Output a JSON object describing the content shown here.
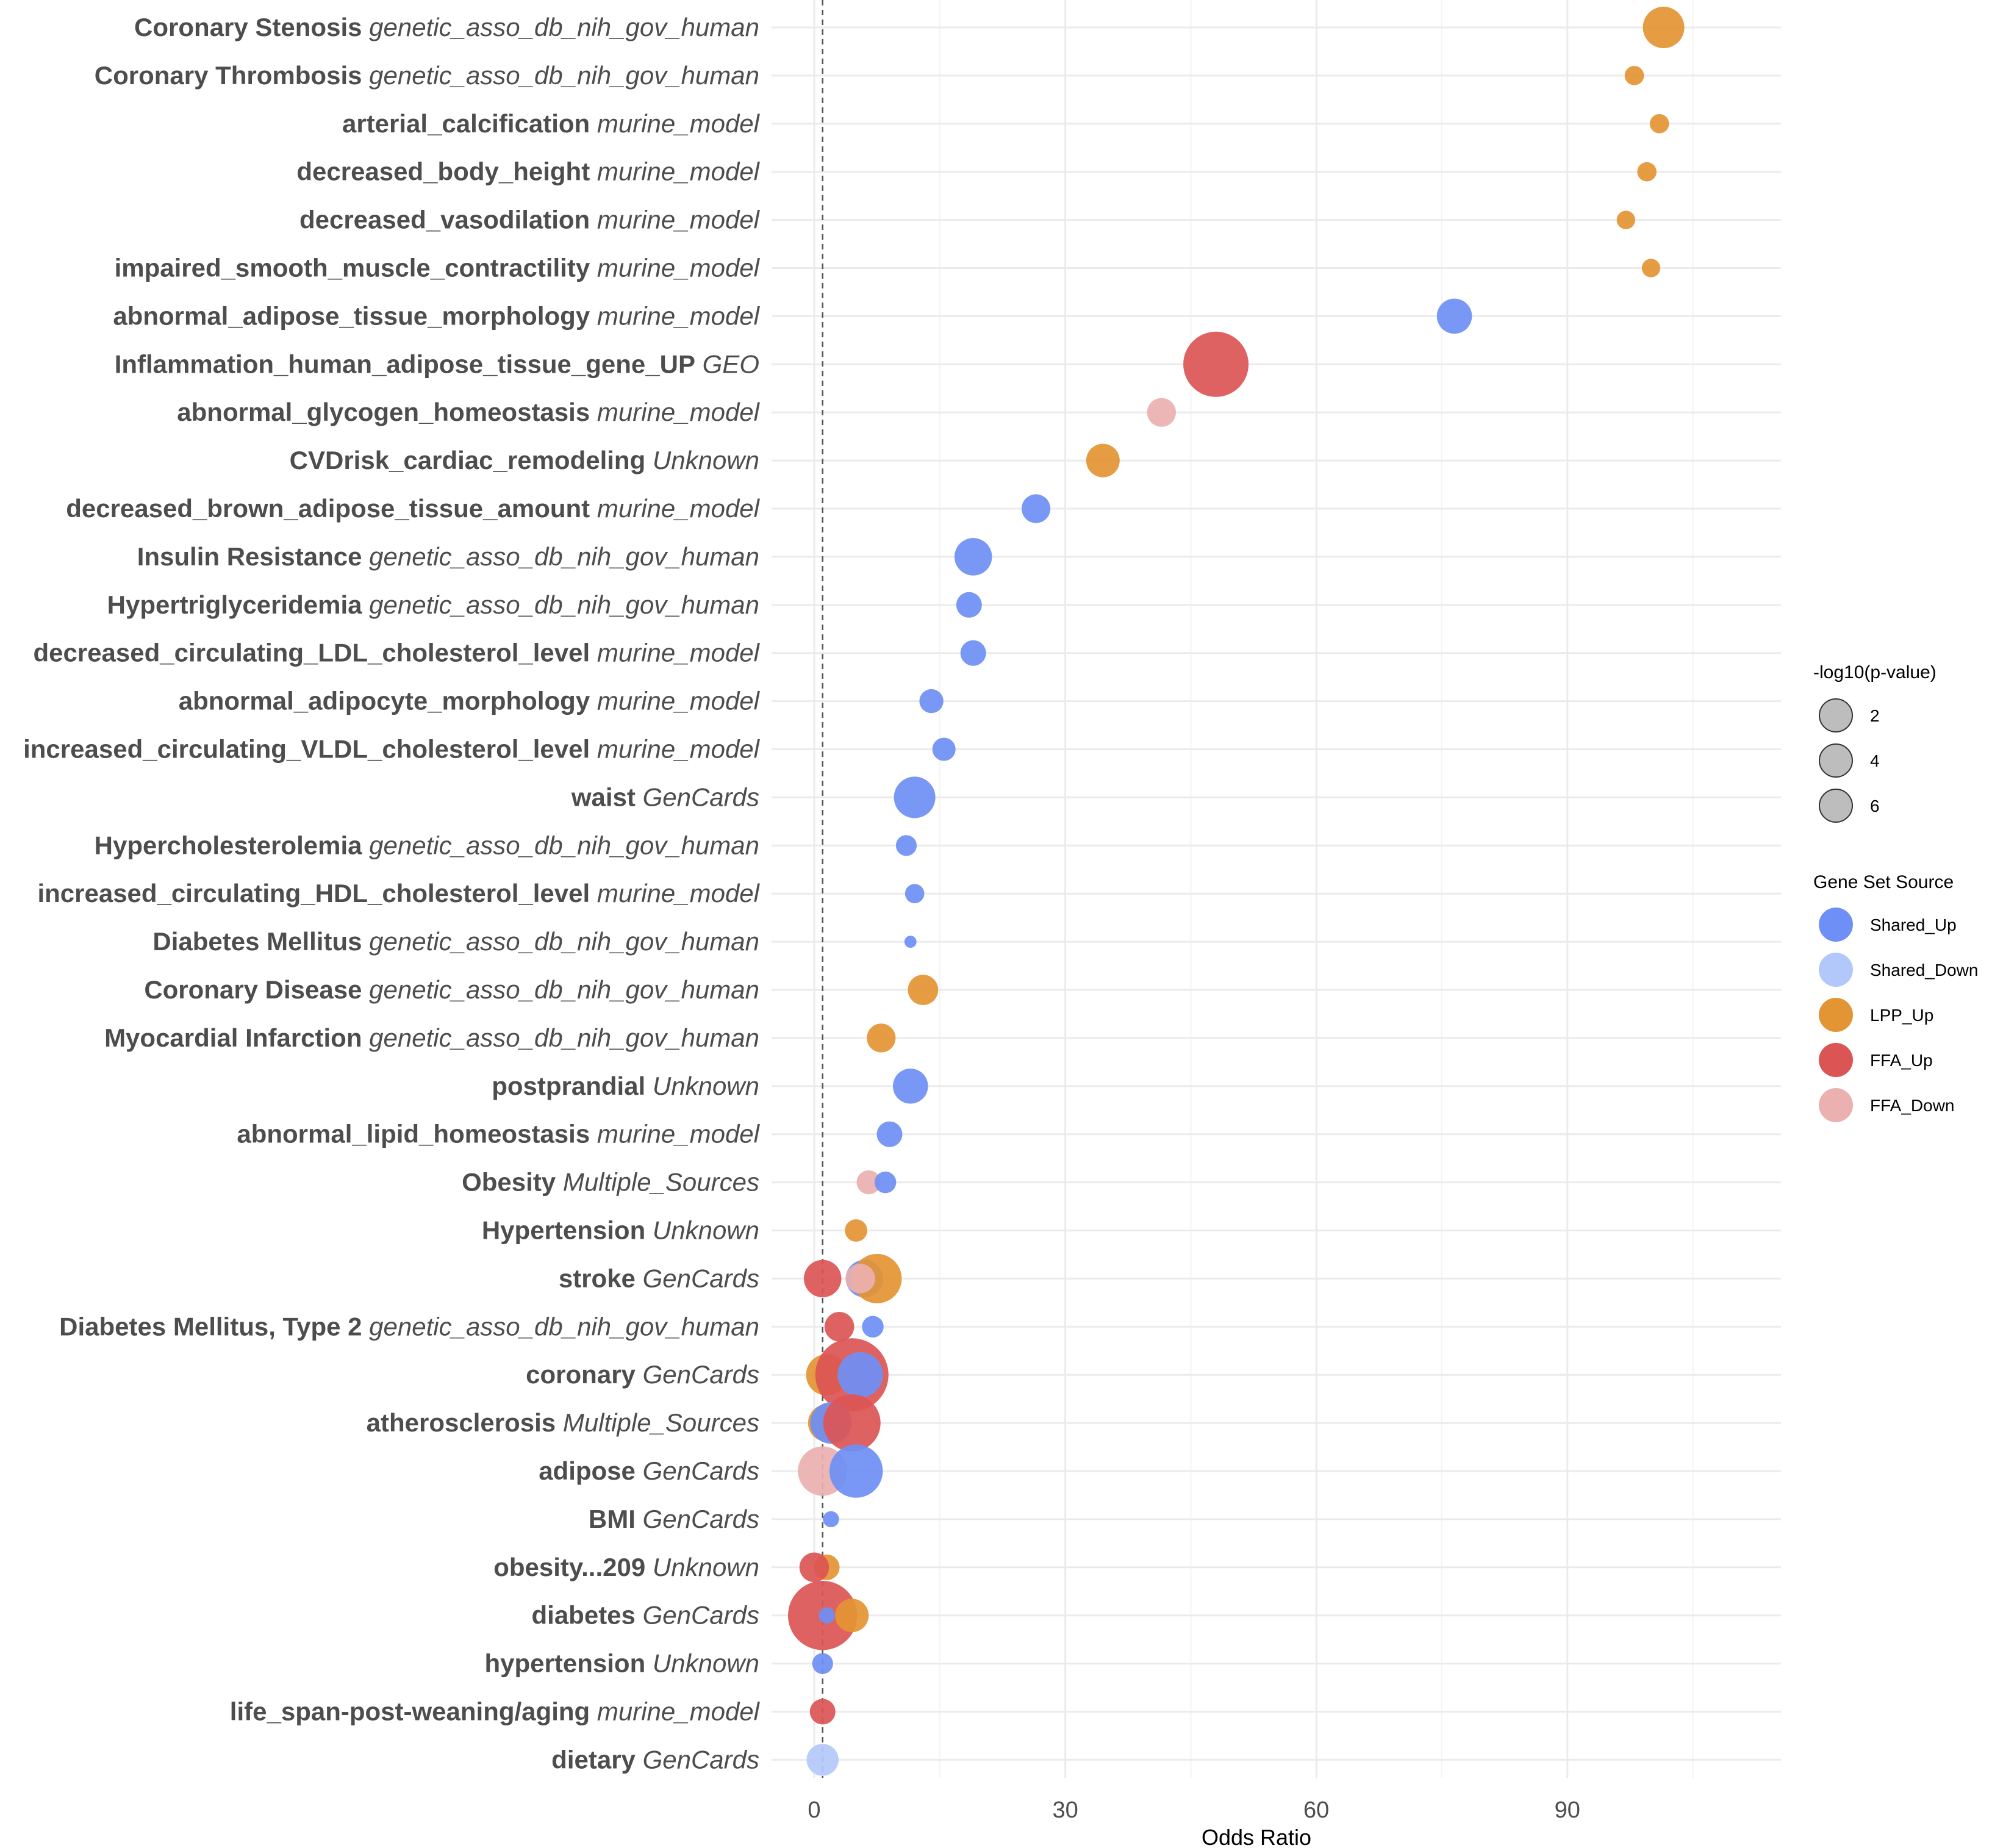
{
  "chart_data": {
    "type": "scatter",
    "title": "",
    "xlabel": "Odds Ratio",
    "ylabel": "",
    "xlim": [
      -5,
      115
    ],
    "x_ticks": [
      0,
      30,
      60,
      90
    ],
    "reference_line_x": 1,
    "size_legend": {
      "title": "-log10(p-value)",
      "values": [
        2,
        4,
        6
      ]
    },
    "color_legend": {
      "title": "Gene Set Source",
      "entries": [
        {
          "name": "Shared_Up",
          "color": "#6e8ff5"
        },
        {
          "name": "Shared_Down",
          "color": "#b3c8fa"
        },
        {
          "name": "LPP_Up",
          "color": "#e39433"
        },
        {
          "name": "FFA_Up",
          "color": "#dc5555"
        },
        {
          "name": "FFA_Down",
          "color": "#ebb0b0"
        }
      ]
    },
    "categories": [
      {
        "name": "Coronary Stenosis",
        "source": "genetic_asso_db_nih_gov_human"
      },
      {
        "name": "Coronary Thrombosis",
        "source": "genetic_asso_db_nih_gov_human"
      },
      {
        "name": "arterial_calcification",
        "source": "murine_model"
      },
      {
        "name": "decreased_body_height",
        "source": "murine_model"
      },
      {
        "name": "decreased_vasodilation",
        "source": "murine_model"
      },
      {
        "name": "impaired_smooth_muscle_contractility",
        "source": "murine_model"
      },
      {
        "name": "abnormal_adipose_tissue_morphology",
        "source": "murine_model"
      },
      {
        "name": "Inflammation_human_adipose_tissue_gene_UP",
        "source": "GEO"
      },
      {
        "name": "abnormal_glycogen_homeostasis",
        "source": "murine_model"
      },
      {
        "name": "CVDrisk_cardiac_remodeling",
        "source": "Unknown"
      },
      {
        "name": "decreased_brown_adipose_tissue_amount",
        "source": "murine_model"
      },
      {
        "name": "Insulin Resistance",
        "source": "genetic_asso_db_nih_gov_human"
      },
      {
        "name": "Hypertriglyceridemia",
        "source": "genetic_asso_db_nih_gov_human"
      },
      {
        "name": "decreased_circulating_LDL_cholesterol_level",
        "source": "murine_model"
      },
      {
        "name": "abnormal_adipocyte_morphology",
        "source": "murine_model"
      },
      {
        "name": "increased_circulating_VLDL_cholesterol_level",
        "source": "murine_model"
      },
      {
        "name": "waist",
        "source": "GenCards"
      },
      {
        "name": "Hypercholesterolemia",
        "source": "genetic_asso_db_nih_gov_human"
      },
      {
        "name": "increased_circulating_HDL_cholesterol_level",
        "source": "murine_model"
      },
      {
        "name": "Diabetes Mellitus",
        "source": "genetic_asso_db_nih_gov_human"
      },
      {
        "name": "Coronary Disease",
        "source": "genetic_asso_db_nih_gov_human"
      },
      {
        "name": "Myocardial Infarction",
        "source": "genetic_asso_db_nih_gov_human"
      },
      {
        "name": "postprandial",
        "source": "Unknown"
      },
      {
        "name": "abnormal_lipid_homeostasis",
        "source": "murine_model"
      },
      {
        "name": "Obesity",
        "source": "Multiple_Sources"
      },
      {
        "name": "Hypertension",
        "source": "Unknown"
      },
      {
        "name": "stroke",
        "source": "GenCards"
      },
      {
        "name": "Diabetes Mellitus, Type 2",
        "source": "genetic_asso_db_nih_gov_human"
      },
      {
        "name": "coronary",
        "source": "GenCards"
      },
      {
        "name": "atherosclerosis",
        "source": "Multiple_Sources"
      },
      {
        "name": "adipose",
        "source": "GenCards"
      },
      {
        "name": "BMI",
        "source": "GenCards"
      },
      {
        "name": "obesity...209",
        "source": "Unknown"
      },
      {
        "name": "diabetes",
        "source": "GenCards"
      },
      {
        "name": "hypertension",
        "source": "Unknown"
      },
      {
        "name": "life_span-post-weaning/aging",
        "source": "murine_model"
      },
      {
        "name": "dietary",
        "source": "GenCards"
      }
    ],
    "points": [
      {
        "term": "Coronary Stenosis",
        "group": "LPP_Up",
        "odds_ratio": 101.5,
        "neglog10p": 4.0
      },
      {
        "term": "Coronary Thrombosis",
        "group": "LPP_Up",
        "odds_ratio": 98.0,
        "neglog10p": 1.2
      },
      {
        "term": "arterial_calcification",
        "group": "LPP_Up",
        "odds_ratio": 101.0,
        "neglog10p": 1.2
      },
      {
        "term": "decreased_body_height",
        "group": "LPP_Up",
        "odds_ratio": 99.5,
        "neglog10p": 1.2
      },
      {
        "term": "decreased_vasodilation",
        "group": "LPP_Up",
        "odds_ratio": 97.0,
        "neglog10p": 1.1
      },
      {
        "term": "impaired_smooth_muscle_contractility",
        "group": "LPP_Up",
        "odds_ratio": 100.0,
        "neglog10p": 1.1
      },
      {
        "term": "abnormal_adipose_tissue_morphology",
        "group": "Shared_Up",
        "odds_ratio": 76.5,
        "neglog10p": 3.2
      },
      {
        "term": "Inflammation_human_adipose_tissue_gene_UP",
        "group": "FFA_Up",
        "odds_ratio": 48.0,
        "neglog10p": 7.0
      },
      {
        "term": "abnormal_glycogen_homeostasis",
        "group": "FFA_Down",
        "odds_ratio": 41.5,
        "neglog10p": 2.4
      },
      {
        "term": "CVDrisk_cardiac_remodeling",
        "group": "LPP_Up",
        "odds_ratio": 34.5,
        "neglog10p": 3.0
      },
      {
        "term": "decreased_brown_adipose_tissue_amount",
        "group": "Shared_Up",
        "odds_ratio": 26.5,
        "neglog10p": 2.4
      },
      {
        "term": "Insulin Resistance",
        "group": "Shared_Up",
        "odds_ratio": 19.0,
        "neglog10p": 3.5
      },
      {
        "term": "Hypertriglyceridemia",
        "group": "Shared_Up",
        "odds_ratio": 18.5,
        "neglog10p": 2.0
      },
      {
        "term": "decreased_circulating_LDL_cholesterol_level",
        "group": "Shared_Up",
        "odds_ratio": 19.0,
        "neglog10p": 2.0
      },
      {
        "term": "abnormal_adipocyte_morphology",
        "group": "Shared_Up",
        "odds_ratio": 14.0,
        "neglog10p": 1.8
      },
      {
        "term": "increased_circulating_VLDL_cholesterol_level",
        "group": "Shared_Up",
        "odds_ratio": 15.5,
        "neglog10p": 1.7
      },
      {
        "term": "waist",
        "group": "Shared_Up",
        "odds_ratio": 12.0,
        "neglog10p": 4.0
      },
      {
        "term": "Hypercholesterolemia",
        "group": "Shared_Up",
        "odds_ratio": 11.0,
        "neglog10p": 1.4
      },
      {
        "term": "increased_circulating_HDL_cholesterol_level",
        "group": "Shared_Up",
        "odds_ratio": 12.0,
        "neglog10p": 1.2
      },
      {
        "term": "Diabetes Mellitus",
        "group": "Shared_Up",
        "odds_ratio": 11.5,
        "neglog10p": 0.3
      },
      {
        "term": "Coronary Disease",
        "group": "LPP_Up",
        "odds_ratio": 13.0,
        "neglog10p": 2.6
      },
      {
        "term": "Myocardial Infarction",
        "group": "LPP_Up",
        "odds_ratio": 8.0,
        "neglog10p": 2.4
      },
      {
        "term": "postprandial",
        "group": "Shared_Up",
        "odds_ratio": 11.5,
        "neglog10p": 3.2
      },
      {
        "term": "abnormal_lipid_homeostasis",
        "group": "Shared_Up",
        "odds_ratio": 9.0,
        "neglog10p": 2.0
      },
      {
        "term": "Obesity",
        "group": "FFA_Down",
        "odds_ratio": 6.5,
        "neglog10p": 1.8
      },
      {
        "term": "Obesity",
        "group": "Shared_Up",
        "odds_ratio": 8.5,
        "neglog10p": 1.5
      },
      {
        "term": "Hypertension",
        "group": "LPP_Up",
        "odds_ratio": 5.0,
        "neglog10p": 1.6
      },
      {
        "term": "stroke",
        "group": "FFA_Up",
        "odds_ratio": 1.0,
        "neglog10p": 3.5
      },
      {
        "term": "stroke",
        "group": "Shared_Up",
        "odds_ratio": 6.0,
        "neglog10p": 3.5
      },
      {
        "term": "stroke",
        "group": "LPP_Up",
        "odds_ratio": 7.5,
        "neglog10p": 5.0
      },
      {
        "term": "stroke",
        "group": "FFA_Down",
        "odds_ratio": 5.5,
        "neglog10p": 2.5
      },
      {
        "term": "Diabetes Mellitus, Type 2",
        "group": "FFA_Up",
        "odds_ratio": 3.0,
        "neglog10p": 2.5
      },
      {
        "term": "Diabetes Mellitus, Type 2",
        "group": "Shared_Up",
        "odds_ratio": 7.0,
        "neglog10p": 1.5
      },
      {
        "term": "coronary",
        "group": "LPP_Up",
        "odds_ratio": 1.5,
        "neglog10p": 4.0
      },
      {
        "term": "coronary",
        "group": "FFA_Up",
        "odds_ratio": 4.5,
        "neglog10p": 8.0
      },
      {
        "term": "coronary",
        "group": "Shared_Up",
        "odds_ratio": 5.5,
        "neglog10p": 4.5
      },
      {
        "term": "atherosclerosis",
        "group": "LPP_Up",
        "odds_ratio": 1.5,
        "neglog10p": 3.5
      },
      {
        "term": "atherosclerosis",
        "group": "Shared_Up",
        "odds_ratio": 2.0,
        "neglog10p": 4.0
      },
      {
        "term": "atherosclerosis",
        "group": "FFA_Up",
        "odds_ratio": 4.5,
        "neglog10p": 6.0
      },
      {
        "term": "adipose",
        "group": "FFA_Down",
        "odds_ratio": 1.0,
        "neglog10p": 5.0
      },
      {
        "term": "adipose",
        "group": "Shared_Up",
        "odds_ratio": 5.0,
        "neglog10p": 5.5
      },
      {
        "term": "BMI",
        "group": "Shared_Up",
        "odds_ratio": 2.0,
        "neglog10p": 0.8
      },
      {
        "term": "obesity...209",
        "group": "LPP_Up",
        "odds_ratio": 1.5,
        "neglog10p": 2.0
      },
      {
        "term": "obesity...209",
        "group": "FFA_Up",
        "odds_ratio": 0.0,
        "neglog10p": 2.5
      },
      {
        "term": "diabetes",
        "group": "FFA_Up",
        "odds_ratio": 1.0,
        "neglog10p": 7.5
      },
      {
        "term": "diabetes",
        "group": "Shared_Up",
        "odds_ratio": 1.5,
        "neglog10p": 0.8
      },
      {
        "term": "diabetes",
        "group": "LPP_Up",
        "odds_ratio": 4.5,
        "neglog10p": 3.0
      },
      {
        "term": "hypertension",
        "group": "Shared_Up",
        "odds_ratio": 1.0,
        "neglog10p": 1.4
      },
      {
        "term": "life_span-post-weaning/aging",
        "group": "FFA_Up",
        "odds_ratio": 1.0,
        "neglog10p": 2.0
      },
      {
        "term": "dietary",
        "group": "Shared_Down",
        "odds_ratio": 1.0,
        "neglog10p": 2.8
      }
    ]
  }
}
